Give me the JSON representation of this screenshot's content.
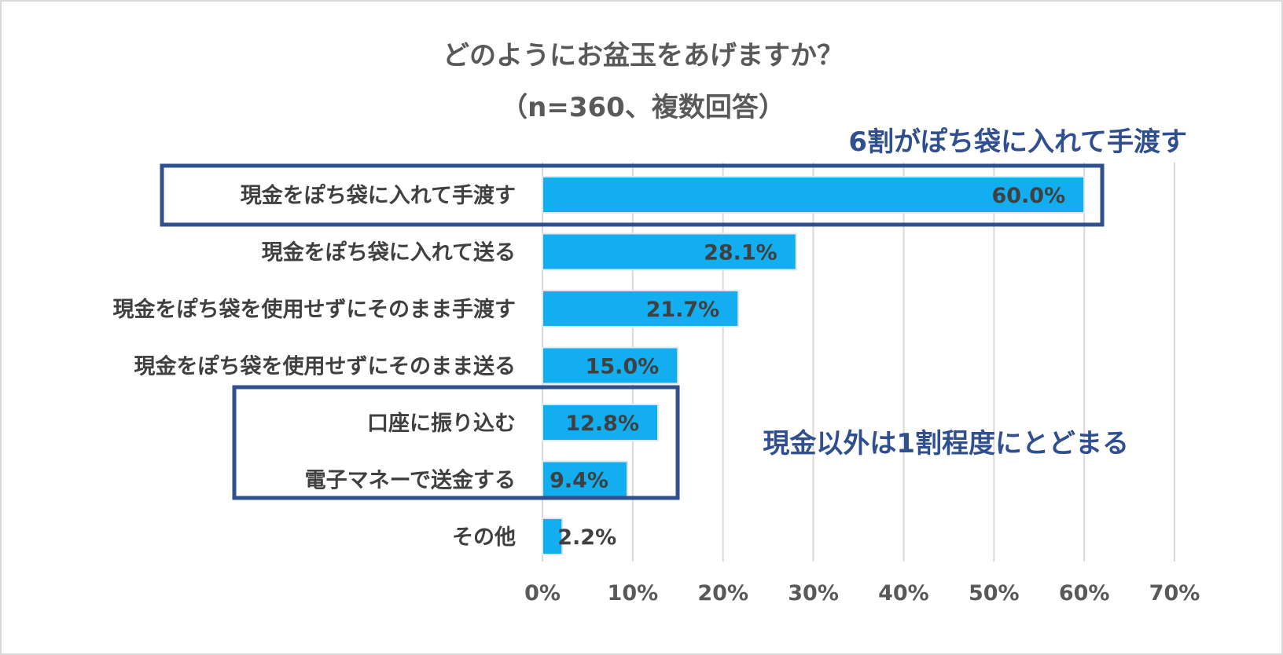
{
  "chart_data": {
    "type": "bar",
    "orientation": "horizontal",
    "title": "どのようにお盆玉をあげますか？",
    "subtitle": "（n=360、複数回答）",
    "categories": [
      "現金をぽち袋に入れて手渡す",
      "現金をぽち袋に入れて送る",
      "現金をぽち袋を使用せずにそのまま手渡す",
      "現金をぽち袋を使用せずにそのまま送る",
      "口座に振り込む",
      "電子マネーで送金する",
      "その他"
    ],
    "values": [
      60.0,
      28.1,
      21.7,
      15.0,
      12.8,
      9.4,
      2.2
    ],
    "value_labels": [
      "60.0%",
      "28.1%",
      "21.7%",
      "15.0%",
      "12.8%",
      "9.4%",
      "2.2%"
    ],
    "xlim": [
      0,
      70
    ],
    "x_ticks": [
      0,
      10,
      20,
      30,
      40,
      50,
      60,
      70
    ],
    "x_tick_labels": [
      "0%",
      "10%",
      "20%",
      "30%",
      "40%",
      "50%",
      "60%",
      "70%"
    ],
    "xlabel": "",
    "ylabel": "",
    "grid": true,
    "legend": "none",
    "annotations": [
      {
        "text": "6割がぽち袋に入れて手渡す",
        "highlights": [
          "現金をぽち袋に入れて手渡す"
        ]
      },
      {
        "text": "現金以外は1割程度にとどまる",
        "highlights": [
          "口座に振り込む",
          "電子マネーで送金する"
        ]
      }
    ]
  },
  "colors": {
    "bar": "#12AEEF",
    "bar_edge": "#dfe8ee",
    "grid": "#d9d9d9",
    "annotation": "#2F4F8F",
    "frame": "#d9d9d9"
  }
}
